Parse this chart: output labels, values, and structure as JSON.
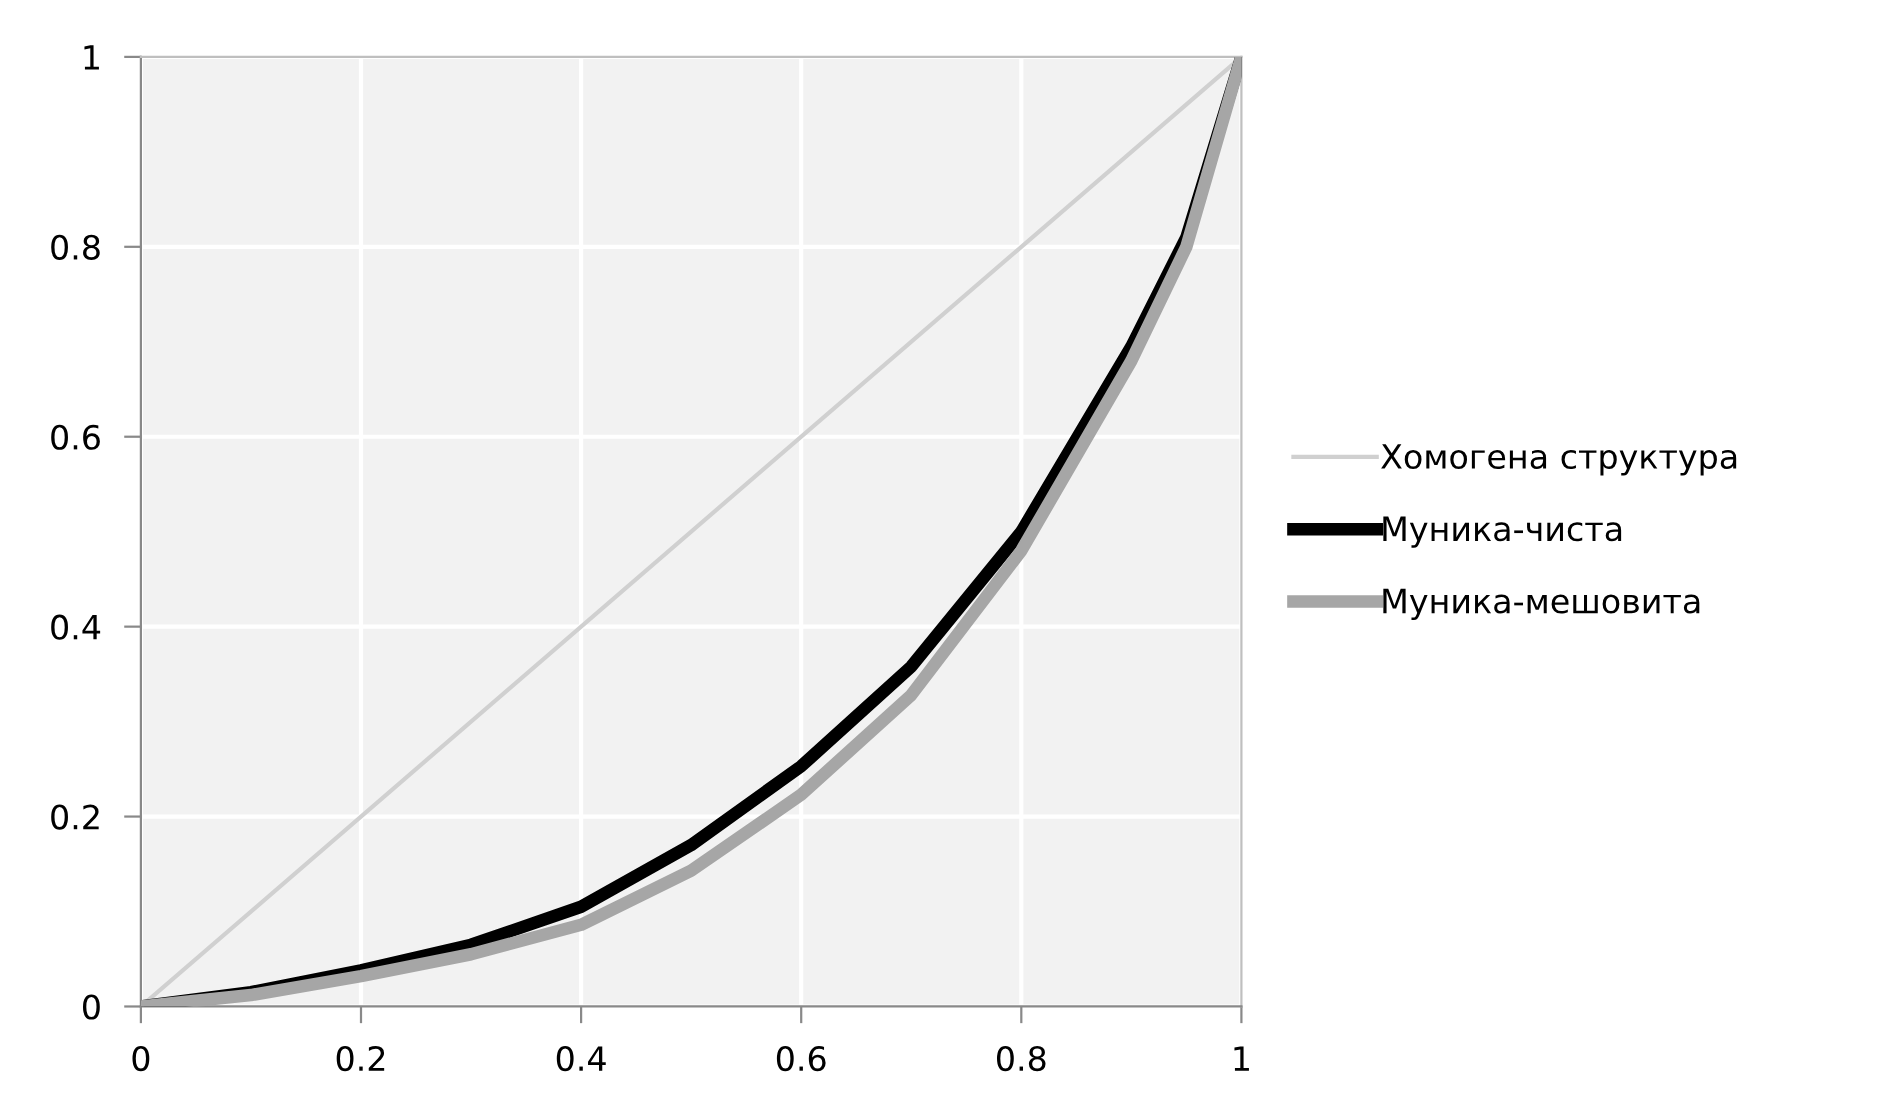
{
  "chart_data": {
    "type": "line",
    "legend": "right",
    "grid": true,
    "marker": "none",
    "xlim": [
      0,
      1
    ],
    "ylim": [
      0,
      1
    ],
    "xticks": [
      0,
      {
        "value": 0.2,
        "label": "0.2"
      },
      {
        "value": 0.4,
        "label": "0.4"
      },
      {
        "value": 0.6,
        "label": "0.6"
      },
      {
        "value": 0.8,
        "label": "0.8"
      },
      1
    ],
    "yticks": [
      0,
      {
        "value": 0.2,
        "label": "0.2"
      },
      {
        "value": 0.4,
        "label": "0.4"
      },
      {
        "value": 0.6,
        "label": "0.6"
      },
      {
        "value": 0.8,
        "label": "0.8"
      },
      1
    ],
    "series": [
      {
        "name": "Хомогена структура",
        "color": "#d0d0d0",
        "x": [
          0,
          1
        ],
        "values": [
          0,
          1
        ]
      },
      {
        "name": "Муника-чиста",
        "color": "#000000",
        "x": [
          0,
          0.1,
          0.2,
          0.3,
          0.4,
          0.5,
          0.6,
          0.7,
          0.8,
          0.9,
          0.95,
          1
        ],
        "values": [
          0,
          0.015,
          0.038,
          0.065,
          0.105,
          0.17,
          0.253,
          0.358,
          0.5,
          0.695,
          0.81,
          1
        ]
      },
      {
        "name": "Муника-мешовита",
        "color": "#a6a6a6",
        "x": [
          0,
          0.1,
          0.2,
          0.3,
          0.4,
          0.5,
          0.6,
          0.7,
          0.8,
          0.9,
          0.95,
          1
        ],
        "values": [
          0,
          0.012,
          0.032,
          0.055,
          0.086,
          0.143,
          0.223,
          0.328,
          0.48,
          0.68,
          0.8,
          1
        ]
      }
    ]
  }
}
